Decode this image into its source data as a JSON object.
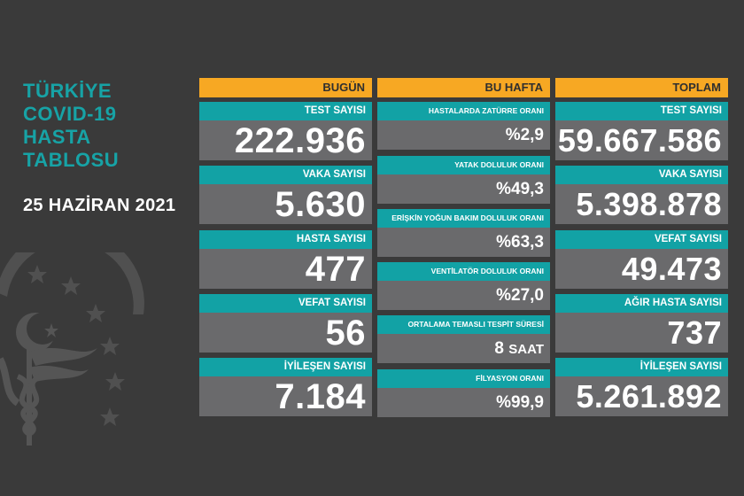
{
  "header": {
    "title_lines": [
      "TÜRKİYE",
      "COVID-19",
      "HASTA",
      "TABLOSU"
    ],
    "date": "25 HAZİRAN 2021"
  },
  "colors": {
    "background": "#3a3a3a",
    "header_orange": "#f7a823",
    "label_teal": "#12a2a5",
    "value_gray": "#6a6a6c",
    "title_teal": "#17a3a6"
  },
  "today": {
    "heading": "BUGÜN",
    "items": [
      {
        "label": "TEST SAYISI",
        "value": "222.936"
      },
      {
        "label": "VAKA SAYISI",
        "value": "5.630"
      },
      {
        "label": "HASTA SAYISI",
        "value": "477"
      },
      {
        "label": "VEFAT SAYISI",
        "value": "56"
      },
      {
        "label": "İYİLEŞEN SAYISI",
        "value": "7.184"
      }
    ]
  },
  "week": {
    "heading": "BU HAFTA",
    "items": [
      {
        "label": "HASTALARDA ZATÜRRE ORANI",
        "value": "%2,9"
      },
      {
        "label": "YATAK DOLULUK ORANI",
        "value": "%49,3"
      },
      {
        "label": "ERİŞKİN YOĞUN BAKIM DOLULUK ORANI",
        "value": "%63,3"
      },
      {
        "label": "VENTİLATÖR DOLULUK ORANI",
        "value": "%27,0"
      },
      {
        "label": "ORTALAMA TEMASLI TESPİT SÜRESİ",
        "value": "8",
        "unit": "SAAT"
      },
      {
        "label": "FİLYASYON ORANI",
        "value": "%99,9"
      }
    ]
  },
  "total": {
    "heading": "TOPLAM",
    "items": [
      {
        "label": "TEST SAYISI",
        "value": "59.667.586"
      },
      {
        "label": "VAKA SAYISI",
        "value": "5.398.878"
      },
      {
        "label": "VEFAT SAYISI",
        "value": "49.473"
      },
      {
        "label": "AĞIR HASTA SAYISI",
        "value": "737"
      },
      {
        "label": "İYİLEŞEN SAYISI",
        "value": "5.261.892"
      }
    ]
  },
  "emblem": {
    "icon": "ministry-of-health-emblem-icon"
  }
}
